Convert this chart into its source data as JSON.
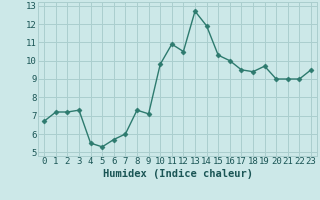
{
  "x": [
    0,
    1,
    2,
    3,
    4,
    5,
    6,
    7,
    8,
    9,
    10,
    11,
    12,
    13,
    14,
    15,
    16,
    17,
    18,
    19,
    20,
    21,
    22,
    23
  ],
  "y": [
    6.7,
    7.2,
    7.2,
    7.3,
    5.5,
    5.3,
    5.7,
    6.0,
    7.3,
    7.1,
    9.8,
    10.9,
    10.5,
    12.7,
    11.9,
    10.3,
    10.0,
    9.5,
    9.4,
    9.7,
    9.0,
    9.0,
    9.0,
    9.5
  ],
  "xlim": [
    -0.5,
    23.5
  ],
  "ylim": [
    4.8,
    13.2
  ],
  "yticks": [
    5,
    6,
    7,
    8,
    9,
    10,
    11,
    12,
    13
  ],
  "xticks": [
    0,
    1,
    2,
    3,
    4,
    5,
    6,
    7,
    8,
    9,
    10,
    11,
    12,
    13,
    14,
    15,
    16,
    17,
    18,
    19,
    20,
    21,
    22,
    23
  ],
  "xlabel": "Humidex (Indice chaleur)",
  "line_color": "#2d7a6e",
  "marker_color": "#2d7a6e",
  "bg_color": "#cce8e8",
  "grid_color": "#aacece",
  "xlabel_color": "#1a5555",
  "tick_label_color": "#1a5555",
  "xlabel_fontsize": 7.5,
  "tick_fontsize": 6.5,
  "marker_size": 2.5,
  "line_width": 1.0
}
